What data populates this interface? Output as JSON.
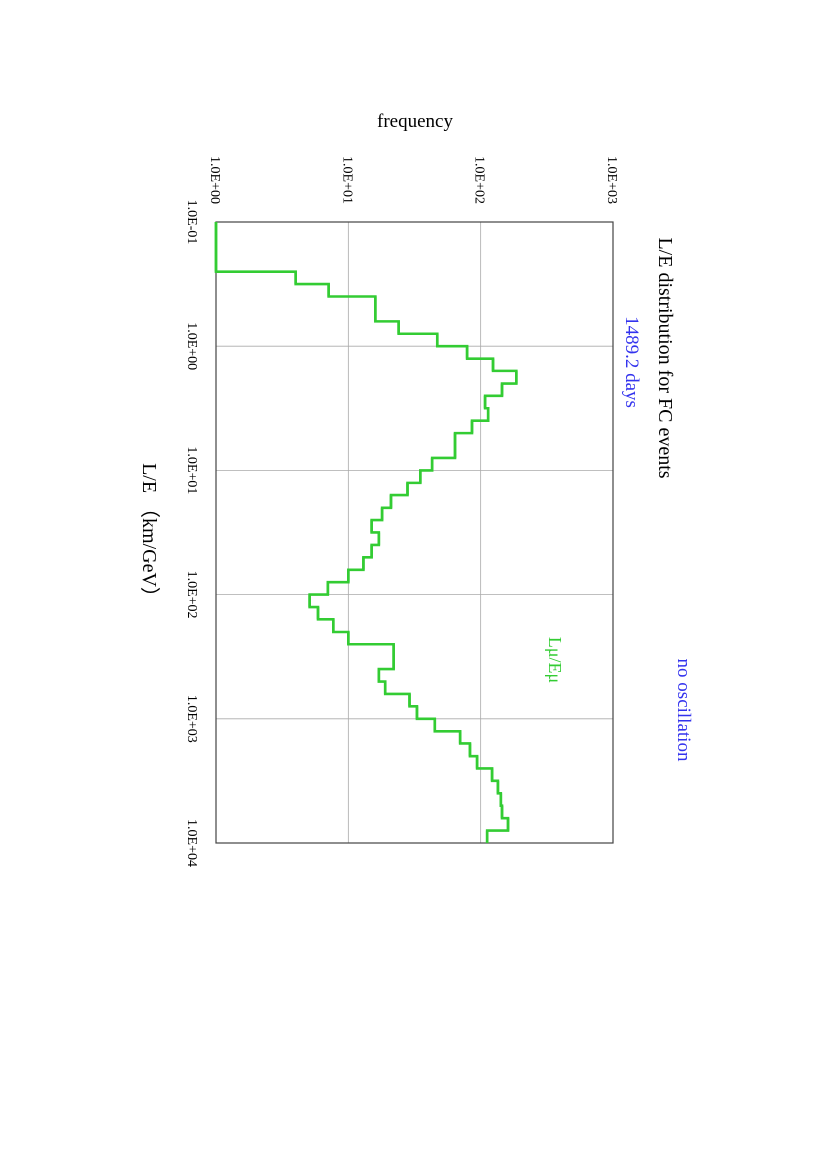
{
  "chart_data": {
    "type": "histogram",
    "title": "L/E distribution for FC events",
    "subtitle": "1489.2 days",
    "annotation": "no oscillation",
    "x_label": "L/E （km/GeV）",
    "y_label": "frequency",
    "x_log": true,
    "y_log": true,
    "grid": true,
    "xlim": [
      0.1,
      10000
    ],
    "ylim": [
      1,
      1000
    ],
    "xticks": [
      {
        "value": 0.1,
        "label": "1.0E-01"
      },
      {
        "value": 1,
        "label": "1.0E+00"
      },
      {
        "value": 10,
        "label": "1.0E+01"
      },
      {
        "value": 100,
        "label": "1.0E+02"
      },
      {
        "value": 1000,
        "label": "1.0E+03"
      },
      {
        "value": 10000,
        "label": "1.0E+04"
      }
    ],
    "yticks": [
      {
        "value": 1,
        "label": "1.0E+00"
      },
      {
        "value": 10,
        "label": "1.0E+01"
      },
      {
        "value": 100,
        "label": "1.0E+02"
      },
      {
        "value": 1000,
        "label": "1.0E+03"
      }
    ],
    "bins": [
      0.1,
      0.126,
      0.158,
      0.2,
      0.251,
      0.316,
      0.398,
      0.501,
      0.631,
      0.794,
      1,
      1.26,
      1.58,
      2,
      2.51,
      3.16,
      3.98,
      5.01,
      6.31,
      7.94,
      10,
      12.6,
      15.8,
      20,
      25.1,
      31.6,
      39.8,
      50.1,
      63.1,
      79.4,
      100,
      126,
      158,
      200,
      251,
      316,
      398,
      501,
      631,
      794,
      1000,
      1260,
      1580,
      2000,
      2510,
      3160,
      3980,
      5010,
      6310,
      7940,
      10000
    ],
    "series": [
      {
        "name": "Lμ/Eμ",
        "color": "#33cc33",
        "values": [
          1,
          1,
          1,
          1,
          4.0,
          7.1,
          16,
          16,
          24,
          47,
          79,
          124,
          186,
          145,
          108,
          114,
          86,
          64,
          64,
          43,
          35,
          28,
          21,
          18,
          15,
          17,
          15,
          13,
          10,
          7,
          5.1,
          5.9,
          7.7,
          10,
          22,
          22,
          17,
          19,
          29,
          33,
          45,
          70,
          83,
          94,
          122,
          135,
          142,
          145,
          161,
          112
        ]
      }
    ]
  }
}
